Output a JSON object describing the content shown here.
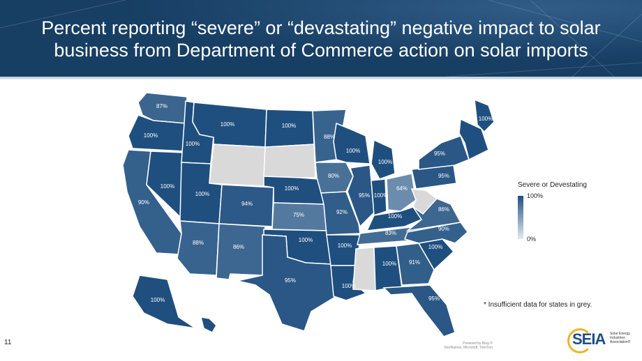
{
  "slide": {
    "title": "Percent reporting “severe” or “devastating” negative impact to solar business from Department of Commerce action on solar imports",
    "page_number": "11",
    "note": "* Insufficient data for states in grey.",
    "credit": "Powered by Bing\n© GeoNames, Microsoft, TomTom"
  },
  "legend": {
    "title": "Severe or Devestating",
    "max_label": "100%",
    "min_label": "0%",
    "colors": {
      "high": "#1f4f7f",
      "low": "#e3ebf3",
      "no_data": "#d9d9d9"
    }
  },
  "logo": {
    "text": "SEIA",
    "subtext": "Solar Energy Industries Association®"
  },
  "map_data": {
    "type": "choropleth",
    "states": [
      {
        "id": "WA",
        "value": "87%",
        "pct": 87
      },
      {
        "id": "OR",
        "value": "100%",
        "pct": 100
      },
      {
        "id": "CA",
        "value": "90%",
        "pct": 90
      },
      {
        "id": "NV",
        "value": "100%",
        "pct": 100
      },
      {
        "id": "ID",
        "value": "100%",
        "pct": 100
      },
      {
        "id": "MT",
        "value": "100%",
        "pct": 100
      },
      {
        "id": "WY",
        "value": "",
        "pct": null
      },
      {
        "id": "UT",
        "value": "100%",
        "pct": 100
      },
      {
        "id": "AZ",
        "value": "88%",
        "pct": 88
      },
      {
        "id": "CO",
        "value": "94%",
        "pct": 94
      },
      {
        "id": "NM",
        "value": "86%",
        "pct": 86
      },
      {
        "id": "ND",
        "value": "100%",
        "pct": 100
      },
      {
        "id": "SD",
        "value": "",
        "pct": null
      },
      {
        "id": "NE",
        "value": "100%",
        "pct": 100
      },
      {
        "id": "KS",
        "value": "75%",
        "pct": 75
      },
      {
        "id": "OK",
        "value": "100%",
        "pct": 100
      },
      {
        "id": "TX",
        "value": "95%",
        "pct": 95
      },
      {
        "id": "MN",
        "value": "88%",
        "pct": 88
      },
      {
        "id": "IA",
        "value": "80%",
        "pct": 80
      },
      {
        "id": "MO",
        "value": "92%",
        "pct": 92
      },
      {
        "id": "AR",
        "value": "100%",
        "pct": 100
      },
      {
        "id": "LA",
        "value": "100%",
        "pct": 100
      },
      {
        "id": "WI",
        "value": "100%",
        "pct": 100
      },
      {
        "id": "IL",
        "value": "95%",
        "pct": 95
      },
      {
        "id": "MI",
        "value": "100%",
        "pct": 100
      },
      {
        "id": "IN",
        "value": "100%",
        "pct": 100
      },
      {
        "id": "OH",
        "value": "64%",
        "pct": 64
      },
      {
        "id": "KY",
        "value": "100%",
        "pct": 100
      },
      {
        "id": "TN",
        "value": "83%",
        "pct": 83
      },
      {
        "id": "MS",
        "value": "",
        "pct": null
      },
      {
        "id": "AL",
        "value": "100%",
        "pct": 100
      },
      {
        "id": "GA",
        "value": "91%",
        "pct": 91
      },
      {
        "id": "FL",
        "value": "95%",
        "pct": 95
      },
      {
        "id": "SC",
        "value": "100%",
        "pct": 100
      },
      {
        "id": "NC",
        "value": "90%",
        "pct": 90
      },
      {
        "id": "VA",
        "value": "86%",
        "pct": 86
      },
      {
        "id": "WV",
        "value": "",
        "pct": null
      },
      {
        "id": "PA",
        "value": "95%",
        "pct": 95
      },
      {
        "id": "NY",
        "value": "95%",
        "pct": 95
      },
      {
        "id": "ME",
        "value": "100%",
        "pct": 100
      },
      {
        "id": "NE_STATES",
        "value": "",
        "pct": 100
      },
      {
        "id": "AK",
        "value": "100%",
        "pct": 100
      },
      {
        "id": "HI",
        "value": "",
        "pct": 100
      }
    ]
  }
}
